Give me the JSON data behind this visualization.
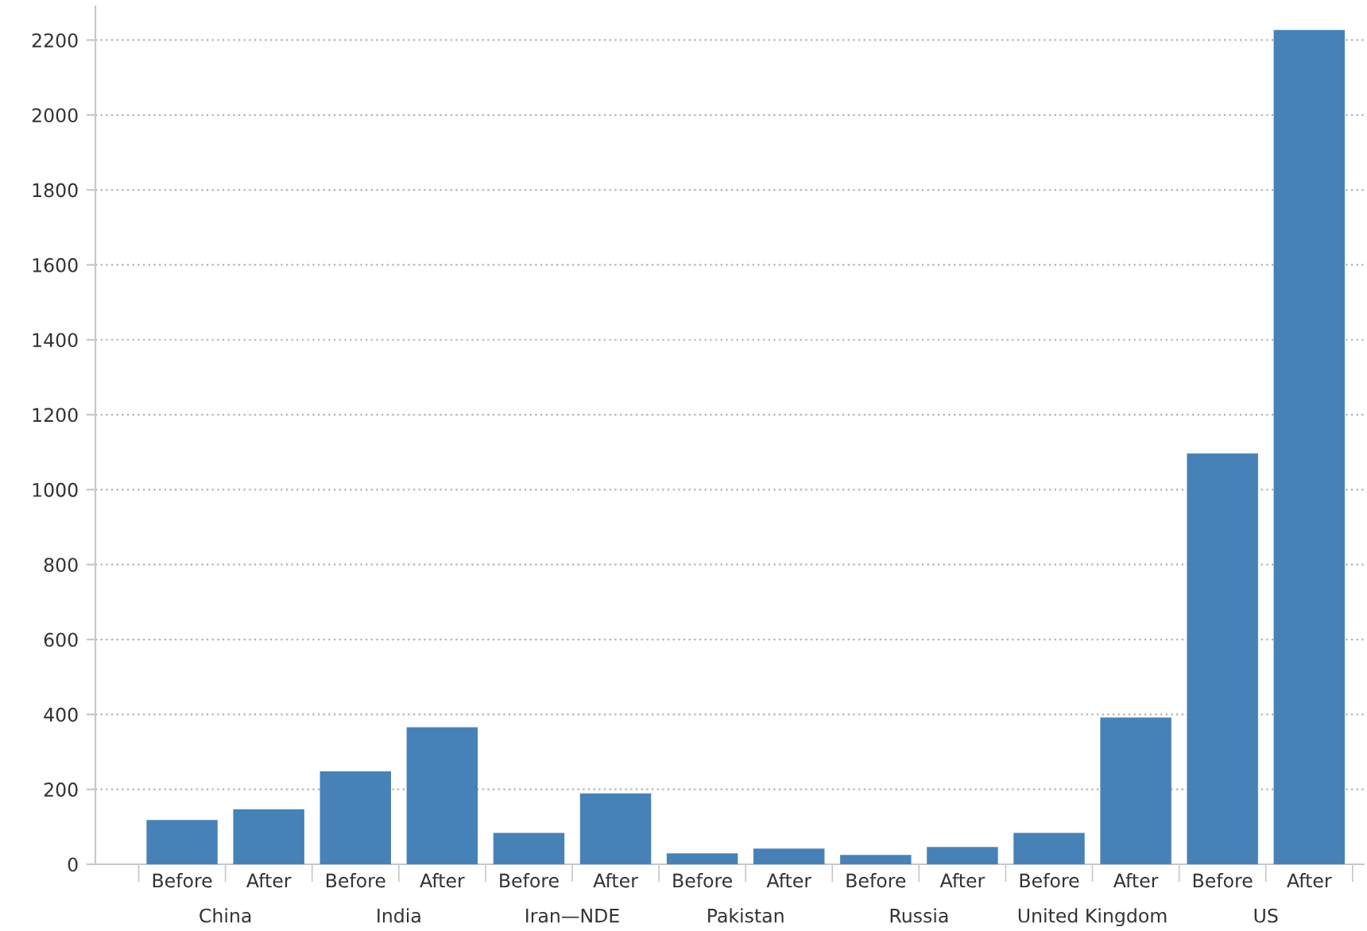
{
  "chart_data": {
    "type": "bar",
    "categories": [
      "Before",
      "After",
      "Before",
      "After",
      "Before",
      "After",
      "Before",
      "After",
      "Before",
      "After",
      "Before",
      "After",
      "Before",
      "After"
    ],
    "values": [
      118,
      147,
      248,
      366,
      84,
      189,
      29,
      42,
      25,
      46,
      84,
      392,
      1097,
      2227
    ],
    "color": "#4682b8",
    "annotations": [
      "China",
      "India",
      "Iran—NDE",
      "Pakistan",
      "Russia",
      "United Kingdom",
      "US"
    ],
    "ylim": [
      0,
      2290
    ],
    "yticks": [
      0,
      200,
      400,
      600,
      800,
      1000,
      1200,
      1400,
      1600,
      1800,
      2000,
      2200
    ],
    "grid": "y"
  }
}
